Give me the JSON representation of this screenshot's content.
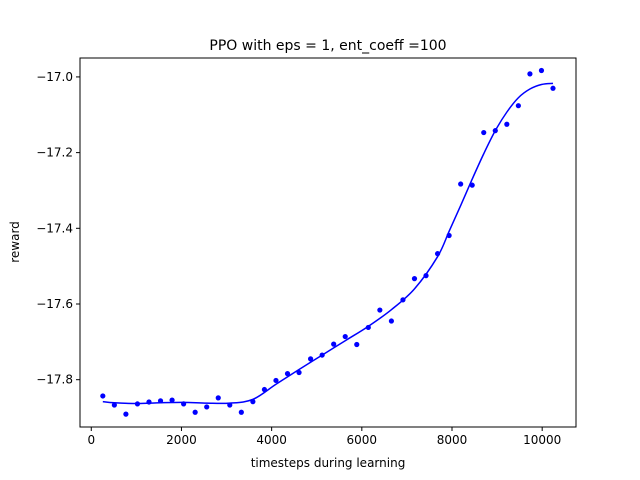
{
  "chart_data": {
    "type": "scatter",
    "title": "PPO with eps = 1, ent_coeff =100",
    "xlabel": "timesteps during learning",
    "ylabel": "reward",
    "xlim": [
      -250,
      10750
    ],
    "ylim": [
      -17.925,
      -16.95
    ],
    "xticks": [
      0,
      2000,
      4000,
      6000,
      8000,
      10000
    ],
    "xtick_labels": [
      "0",
      "2000",
      "4000",
      "6000",
      "8000",
      "10000"
    ],
    "yticks": [
      -17.8,
      -17.6,
      -17.4,
      -17.2,
      -17.0
    ],
    "ytick_labels": [
      "−17.8",
      "−17.6",
      "−17.4",
      "−17.2",
      "−17.0"
    ],
    "grid": false,
    "color": "#0000ff",
    "series": [
      {
        "kind": "points",
        "x": [
          256,
          512,
          768,
          1024,
          1280,
          1536,
          1792,
          2048,
          2304,
          2560,
          2816,
          3072,
          3328,
          3584,
          3840,
          4096,
          4352,
          4608,
          4864,
          5120,
          5376,
          5632,
          5888,
          6144,
          6400,
          6656,
          6912,
          7168,
          7424,
          7680,
          7936,
          8192,
          8448,
          8704,
          8960,
          9216,
          9472,
          9728,
          9984,
          10240
        ],
        "y": [
          -17.843,
          -17.867,
          -17.891,
          -17.864,
          -17.859,
          -17.856,
          -17.854,
          -17.864,
          -17.886,
          -17.872,
          -17.848,
          -17.867,
          -17.886,
          -17.858,
          -17.826,
          -17.802,
          -17.784,
          -17.781,
          -17.745,
          -17.735,
          -17.706,
          -17.686,
          -17.707,
          -17.662,
          -17.616,
          -17.645,
          -17.589,
          -17.533,
          -17.525,
          -17.467,
          -17.419,
          -17.283,
          -17.286,
          -17.147,
          -17.142,
          -17.125,
          -17.076,
          -16.992,
          -16.983,
          -17.03
        ]
      },
      {
        "kind": "smooth-line",
        "x": [
          256,
          512,
          1024,
          1536,
          2048,
          2560,
          3072,
          3584,
          4096,
          4608,
          5120,
          5632,
          6144,
          6656,
          7168,
          7680,
          7936,
          8192,
          8448,
          8704,
          8960,
          9216,
          9472,
          9728,
          9984,
          10240
        ],
        "y": [
          -17.858,
          -17.861,
          -17.863,
          -17.861,
          -17.86,
          -17.862,
          -17.862,
          -17.852,
          -17.812,
          -17.773,
          -17.735,
          -17.697,
          -17.659,
          -17.615,
          -17.56,
          -17.475,
          -17.408,
          -17.34,
          -17.27,
          -17.203,
          -17.142,
          -17.093,
          -17.055,
          -17.032,
          -17.02,
          -17.017
        ]
      }
    ]
  }
}
